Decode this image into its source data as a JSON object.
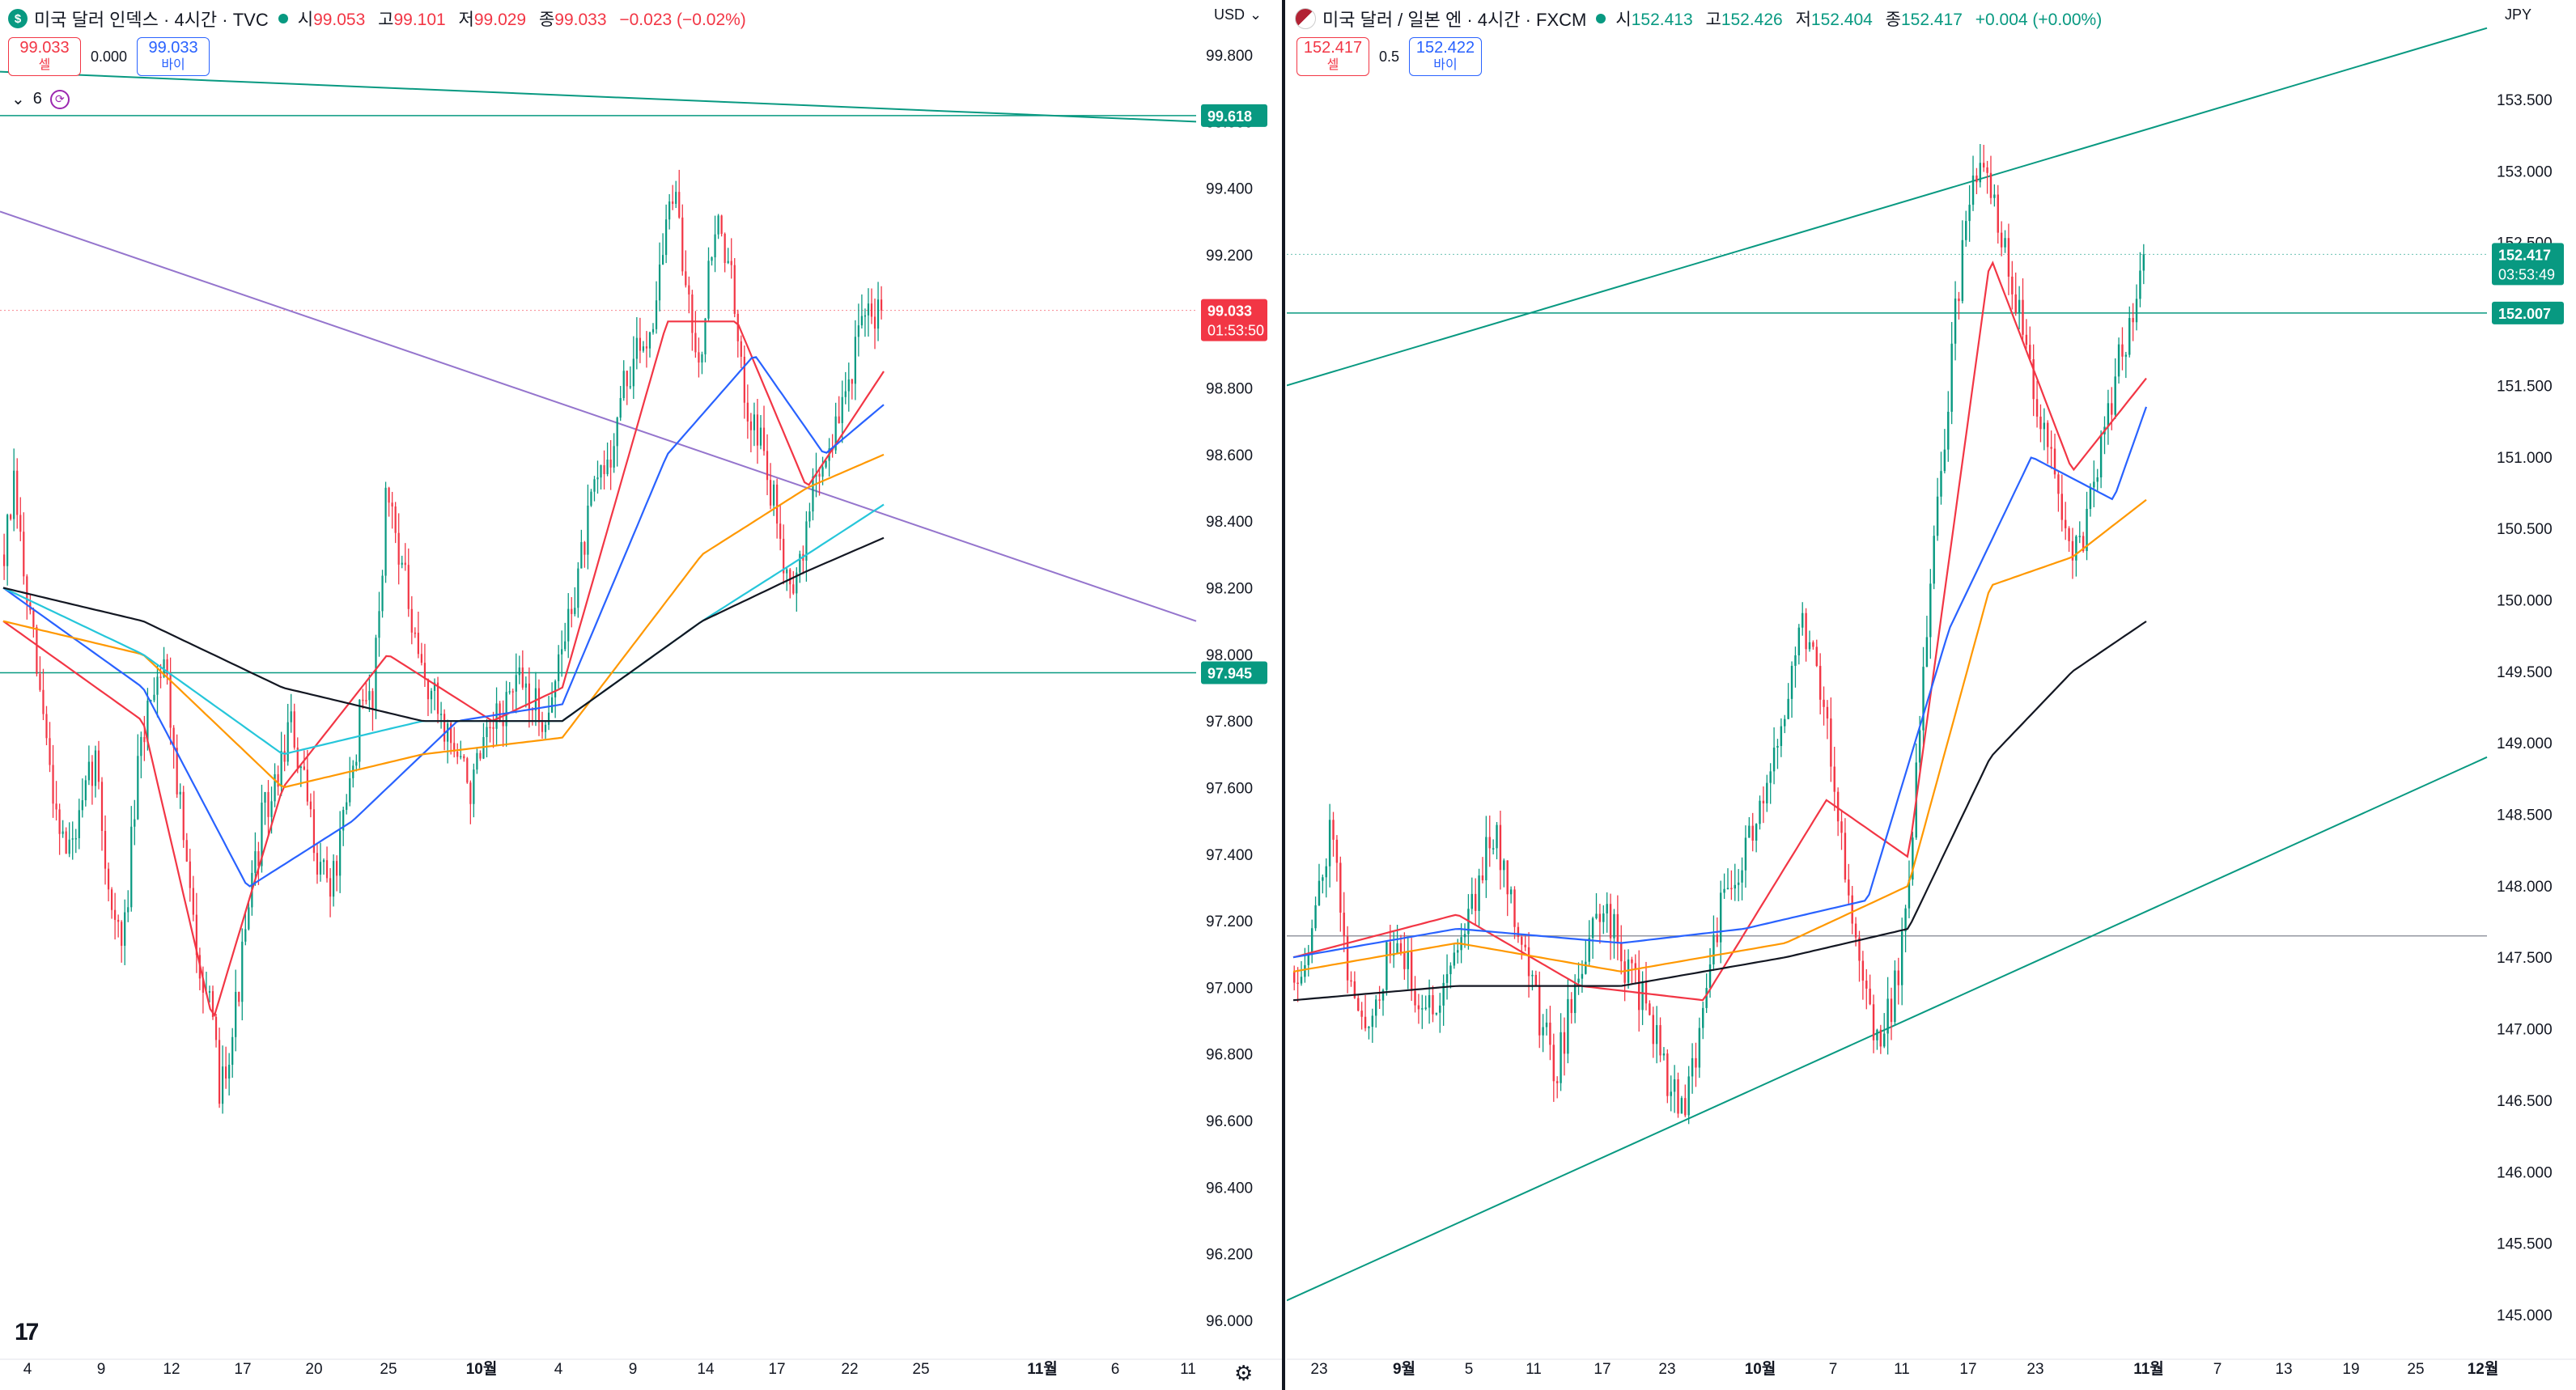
{
  "panels": [
    {
      "id": "left",
      "legend": {
        "icon": "dollar-icon",
        "title": "미국 달러 인덱스 · 4시간 · TVC",
        "open_label": "시",
        "open": "99.053",
        "high_label": "고",
        "high": "99.101",
        "low_label": "저",
        "low": "99.029",
        "close_label": "종",
        "close": "99.033",
        "change": "−0.023 (−0.02%)"
      },
      "trade": {
        "sell_price": "99.033",
        "sell_label": "셀",
        "spread": "0.000",
        "buy_price": "99.033",
        "buy_label": "바이"
      },
      "indicators_count": "6",
      "currency": "USD",
      "tags": [
        {
          "value": "99.618",
          "color": "#089981"
        },
        {
          "value": "99.033",
          "sub": "01:53:50",
          "color": "#f23645"
        },
        {
          "value": "97.945",
          "color": "#089981"
        }
      ],
      "y_ticks": [
        "96.000",
        "96.200",
        "96.400",
        "96.600",
        "96.800",
        "97.000",
        "97.200",
        "97.400",
        "97.600",
        "97.800",
        "98.000",
        "98.200",
        "98.400",
        "98.600",
        "98.800",
        "99.000",
        "99.200",
        "99.400",
        "99.600",
        "99.800"
      ],
      "x_ticks": [
        {
          "label": "4"
        },
        {
          "label": "9"
        },
        {
          "label": "12"
        },
        {
          "label": "17"
        },
        {
          "label": "20"
        },
        {
          "label": "25"
        },
        {
          "label": "10월",
          "bold": true
        },
        {
          "label": "4"
        },
        {
          "label": "9"
        },
        {
          "label": "14"
        },
        {
          "label": "17"
        },
        {
          "label": "22"
        },
        {
          "label": "25"
        },
        {
          "label": "11월",
          "bold": true
        },
        {
          "label": "6"
        },
        {
          "label": "11"
        }
      ]
    },
    {
      "id": "right",
      "legend": {
        "icon": "us-jp-flags-icon",
        "title": "미국 달러 / 일본 엔 · 4시간 · FXCM",
        "open_label": "시",
        "open": "152.413",
        "high_label": "고",
        "high": "152.426",
        "low_label": "저",
        "low": "152.404",
        "close_label": "종",
        "close": "152.417",
        "change": "+0.004 (+0.00%)"
      },
      "trade": {
        "sell_price": "152.417",
        "sell_label": "셀",
        "spread": "0.5",
        "buy_price": "152.422",
        "buy_label": "바이"
      },
      "currency": "JPY",
      "tags": [
        {
          "value": "152.417",
          "sub": "03:53:49",
          "color": "#089981"
        },
        {
          "value": "152.007",
          "color": "#089981"
        }
      ],
      "y_ticks": [
        "145.000",
        "145.500",
        "146.000",
        "146.500",
        "147.000",
        "147.500",
        "148.000",
        "148.500",
        "149.000",
        "149.500",
        "150.000",
        "150.500",
        "151.000",
        "151.500",
        "152.000",
        "152.500",
        "153.000",
        "153.500"
      ],
      "x_ticks": [
        {
          "label": "23"
        },
        {
          "label": "9월",
          "bold": true
        },
        {
          "label": "5"
        },
        {
          "label": "11"
        },
        {
          "label": "17"
        },
        {
          "label": "23"
        },
        {
          "label": "10월",
          "bold": true
        },
        {
          "label": "7"
        },
        {
          "label": "11"
        },
        {
          "label": "17"
        },
        {
          "label": "23"
        },
        {
          "label": "11월",
          "bold": true
        },
        {
          "label": "7"
        },
        {
          "label": "13"
        },
        {
          "label": "19"
        },
        {
          "label": "25"
        },
        {
          "label": "12월",
          "bold": true
        }
      ]
    }
  ],
  "chart_data": [
    {
      "type": "candlestick",
      "title": "미국 달러 인덱스 · 4시간 · TVC",
      "timeframe": "4시간",
      "ylim": [
        96.0,
        99.8
      ],
      "last_price": 99.033,
      "horizontal_lines": [
        99.618,
        97.945
      ],
      "trend_lines": [
        {
          "color": "#089981",
          "from": [
            0,
            99.75
          ],
          "to": [
            1,
            99.6
          ]
        },
        {
          "color": "#9575cd",
          "from": [
            0,
            99.33
          ],
          "to": [
            1,
            98.1
          ]
        }
      ],
      "price_path": [
        [
          0,
          98.3
        ],
        [
          3,
          98.5
        ],
        [
          6,
          98.2
        ],
        [
          10,
          97.9
        ],
        [
          14,
          97.6
        ],
        [
          18,
          97.4
        ],
        [
          22,
          97.5
        ],
        [
          26,
          97.7
        ],
        [
          30,
          97.3
        ],
        [
          34,
          97.1
        ],
        [
          38,
          97.6
        ],
        [
          42,
          97.9
        ],
        [
          46,
          98.0
        ],
        [
          50,
          97.6
        ],
        [
          54,
          97.2
        ],
        [
          58,
          97.0
        ],
        [
          62,
          96.7
        ],
        [
          66,
          96.9
        ],
        [
          70,
          97.2
        ],
        [
          74,
          97.5
        ],
        [
          78,
          97.6
        ],
        [
          82,
          97.8
        ],
        [
          86,
          97.6
        ],
        [
          90,
          97.4
        ],
        [
          94,
          97.3
        ],
        [
          98,
          97.5
        ],
        [
          102,
          97.8
        ],
        [
          106,
          97.9
        ],
        [
          110,
          98.5
        ],
        [
          114,
          98.3
        ],
        [
          118,
          98.0
        ],
        [
          122,
          97.9
        ],
        [
          126,
          97.8
        ],
        [
          130,
          97.7
        ],
        [
          134,
          97.6
        ],
        [
          138,
          97.7
        ],
        [
          142,
          97.8
        ],
        [
          146,
          97.9
        ],
        [
          150,
          97.9
        ],
        [
          154,
          97.8
        ],
        [
          158,
          97.9
        ],
        [
          162,
          98.1
        ],
        [
          166,
          98.3
        ],
        [
          170,
          98.5
        ],
        [
          174,
          98.6
        ],
        [
          178,
          98.8
        ],
        [
          182,
          98.9
        ],
        [
          186,
          99.0
        ],
        [
          189,
          99.2
        ],
        [
          192,
          99.4
        ],
        [
          196,
          99.1
        ],
        [
          200,
          98.9
        ],
        [
          204,
          99.3
        ],
        [
          208,
          99.2
        ],
        [
          212,
          98.8
        ],
        [
          216,
          98.7
        ],
        [
          220,
          98.5
        ],
        [
          224,
          98.3
        ],
        [
          228,
          98.2
        ],
        [
          232,
          98.5
        ],
        [
          236,
          98.6
        ],
        [
          240,
          98.7
        ],
        [
          244,
          98.9
        ],
        [
          248,
          99.0
        ],
        [
          252,
          99.033
        ]
      ],
      "moving_averages": [
        {
          "color": "#f23645",
          "path": [
            [
              0,
              98.1
            ],
            [
              40,
              97.8
            ],
            [
              60,
              96.9
            ],
            [
              80,
              97.6
            ],
            [
              110,
              98.0
            ],
            [
              140,
              97.8
            ],
            [
              160,
              97.9
            ],
            [
              190,
              99.0
            ],
            [
              210,
              99.0
            ],
            [
              230,
              98.5
            ],
            [
              252,
              98.85
            ]
          ]
        },
        {
          "color": "#2962ff",
          "path": [
            [
              0,
              98.2
            ],
            [
              40,
              97.9
            ],
            [
              70,
              97.3
            ],
            [
              100,
              97.5
            ],
            [
              130,
              97.8
            ],
            [
              160,
              97.85
            ],
            [
              190,
              98.6
            ],
            [
              215,
              98.9
            ],
            [
              235,
              98.6
            ],
            [
              252,
              98.75
            ]
          ]
        },
        {
          "color": "#ff9800",
          "path": [
            [
              0,
              98.1
            ],
            [
              40,
              98.0
            ],
            [
              80,
              97.6
            ],
            [
              120,
              97.7
            ],
            [
              160,
              97.75
            ],
            [
              200,
              98.3
            ],
            [
              230,
              98.5
            ],
            [
              252,
              98.6
            ]
          ]
        },
        {
          "color": "#26c6da",
          "path": [
            [
              0,
              98.2
            ],
            [
              40,
              98.0
            ],
            [
              80,
              97.7
            ],
            [
              120,
              97.8
            ],
            [
              160,
              97.8
            ],
            [
              200,
              98.1
            ],
            [
              230,
              98.3
            ],
            [
              252,
              98.45
            ]
          ]
        },
        {
          "color": "#131722",
          "path": [
            [
              0,
              98.2
            ],
            [
              40,
              98.1
            ],
            [
              80,
              97.9
            ],
            [
              120,
              97.8
            ],
            [
              160,
              97.8
            ],
            [
              200,
              98.1
            ],
            [
              230,
              98.25
            ],
            [
              252,
              98.35
            ]
          ]
        }
      ]
    },
    {
      "type": "candlestick",
      "title": "미국 달러 / 일본 엔 · 4시간 · FXCM",
      "timeframe": "4시간",
      "ylim": [
        145.0,
        153.5
      ],
      "last_price": 152.417,
      "horizontal_lines": [
        152.007,
        147.65
      ],
      "trend_lines": [
        {
          "color": "#089981",
          "from": [
            0,
            151.5
          ],
          "to": [
            1,
            154.0
          ]
        },
        {
          "color": "#089981",
          "from": [
            0,
            145.1
          ],
          "to": [
            1,
            148.9
          ]
        }
      ],
      "price_path": [
        [
          0,
          147.4
        ],
        [
          4,
          147.6
        ],
        [
          8,
          148.3
        ],
        [
          10,
          148.5
        ],
        [
          12,
          147.6
        ],
        [
          16,
          147.0
        ],
        [
          20,
          147.2
        ],
        [
          24,
          147.6
        ],
        [
          28,
          147.4
        ],
        [
          32,
          147.1
        ],
        [
          36,
          147.3
        ],
        [
          40,
          147.6
        ],
        [
          44,
          147.9
        ],
        [
          48,
          148.4
        ],
        [
          52,
          148.1
        ],
        [
          56,
          147.6
        ],
        [
          60,
          147.1
        ],
        [
          64,
          146.7
        ],
        [
          68,
          147.2
        ],
        [
          72,
          147.6
        ],
        [
          76,
          147.9
        ],
        [
          80,
          147.5
        ],
        [
          84,
          147.3
        ],
        [
          88,
          147.0
        ],
        [
          92,
          146.6
        ],
        [
          96,
          146.4
        ],
        [
          100,
          147.2
        ],
        [
          104,
          147.8
        ],
        [
          108,
          148.0
        ],
        [
          112,
          148.4
        ],
        [
          116,
          148.6
        ],
        [
          120,
          149.3
        ],
        [
          124,
          149.9
        ],
        [
          128,
          149.6
        ],
        [
          132,
          148.8
        ],
        [
          136,
          147.8
        ],
        [
          140,
          147.2
        ],
        [
          144,
          146.9
        ],
        [
          148,
          147.4
        ],
        [
          152,
          148.6
        ],
        [
          156,
          150.2
        ],
        [
          160,
          151.4
        ],
        [
          164,
          152.6
        ],
        [
          168,
          153.0
        ],
        [
          172,
          152.7
        ],
        [
          176,
          152.2
        ],
        [
          180,
          151.7
        ],
        [
          184,
          151.1
        ],
        [
          188,
          150.6
        ],
        [
          192,
          150.3
        ],
        [
          196,
          150.8
        ],
        [
          200,
          151.4
        ],
        [
          204,
          151.9
        ],
        [
          208,
          152.417
        ]
      ],
      "moving_averages": [
        {
          "color": "#f23645",
          "path": [
            [
              0,
              147.5
            ],
            [
              40,
              147.8
            ],
            [
              70,
              147.3
            ],
            [
              100,
              147.2
            ],
            [
              130,
              148.6
            ],
            [
              150,
              148.2
            ],
            [
              170,
              152.4
            ],
            [
              190,
              150.9
            ],
            [
              208,
              151.55
            ]
          ]
        },
        {
          "color": "#2962ff",
          "path": [
            [
              0,
              147.5
            ],
            [
              40,
              147.7
            ],
            [
              80,
              147.6
            ],
            [
              110,
              147.7
            ],
            [
              140,
              147.9
            ],
            [
              160,
              149.8
            ],
            [
              180,
              151.0
            ],
            [
              200,
              150.7
            ],
            [
              208,
              151.35
            ]
          ]
        },
        {
          "color": "#ff9800",
          "path": [
            [
              0,
              147.4
            ],
            [
              40,
              147.6
            ],
            [
              80,
              147.4
            ],
            [
              120,
              147.6
            ],
            [
              150,
              148.0
            ],
            [
              170,
              150.1
            ],
            [
              190,
              150.3
            ],
            [
              208,
              150.7
            ]
          ]
        },
        {
          "color": "#131722",
          "path": [
            [
              0,
              147.2
            ],
            [
              40,
              147.3
            ],
            [
              80,
              147.3
            ],
            [
              120,
              147.5
            ],
            [
              150,
              147.7
            ],
            [
              170,
              148.9
            ],
            [
              190,
              149.5
            ],
            [
              208,
              149.85
            ]
          ]
        }
      ]
    }
  ]
}
